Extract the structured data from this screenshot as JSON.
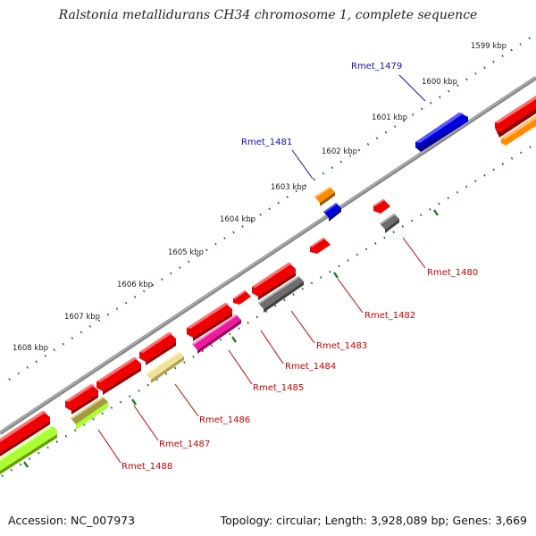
{
  "title": "Ralstonia metallidurans CH34 chromosome 1, complete sequence",
  "accession": "Accession: NC_007973",
  "summary": "Topology: circular; Length: 3,928,089 bp; Genes: 3,669",
  "kbp_labels": [
    "1599 kbp",
    "1600 kbp",
    "1601 kbp",
    "1602 kbp",
    "1603 kbp",
    "1604 kbp",
    "1605 kbp",
    "1606 kbp",
    "1607 kbp",
    "1608 kbp"
  ],
  "gene_labels": {
    "outer": [
      "Rmet_1479",
      "Rmet_1481"
    ],
    "inner": [
      "Rmet_1480",
      "Rmet_1482",
      "Rmet_1483",
      "Rmet_1484",
      "Rmet_1485",
      "Rmet_1486",
      "Rmet_1487",
      "Rmet_1488"
    ]
  },
  "colors": {
    "backbone": "#8a8a8a",
    "ticks": "#1a7a1a",
    "outer_label": "#1010c0",
    "inner_label": "#cc0000",
    "red": "#ee0000",
    "blue": "#0000dd",
    "orange": "#ff8c00",
    "gray": "#6e6e6e",
    "magenta": "#ee1a9c",
    "khaki": "#f0e29a",
    "lime": "#aaff33",
    "olive": "#a59a3a"
  }
}
